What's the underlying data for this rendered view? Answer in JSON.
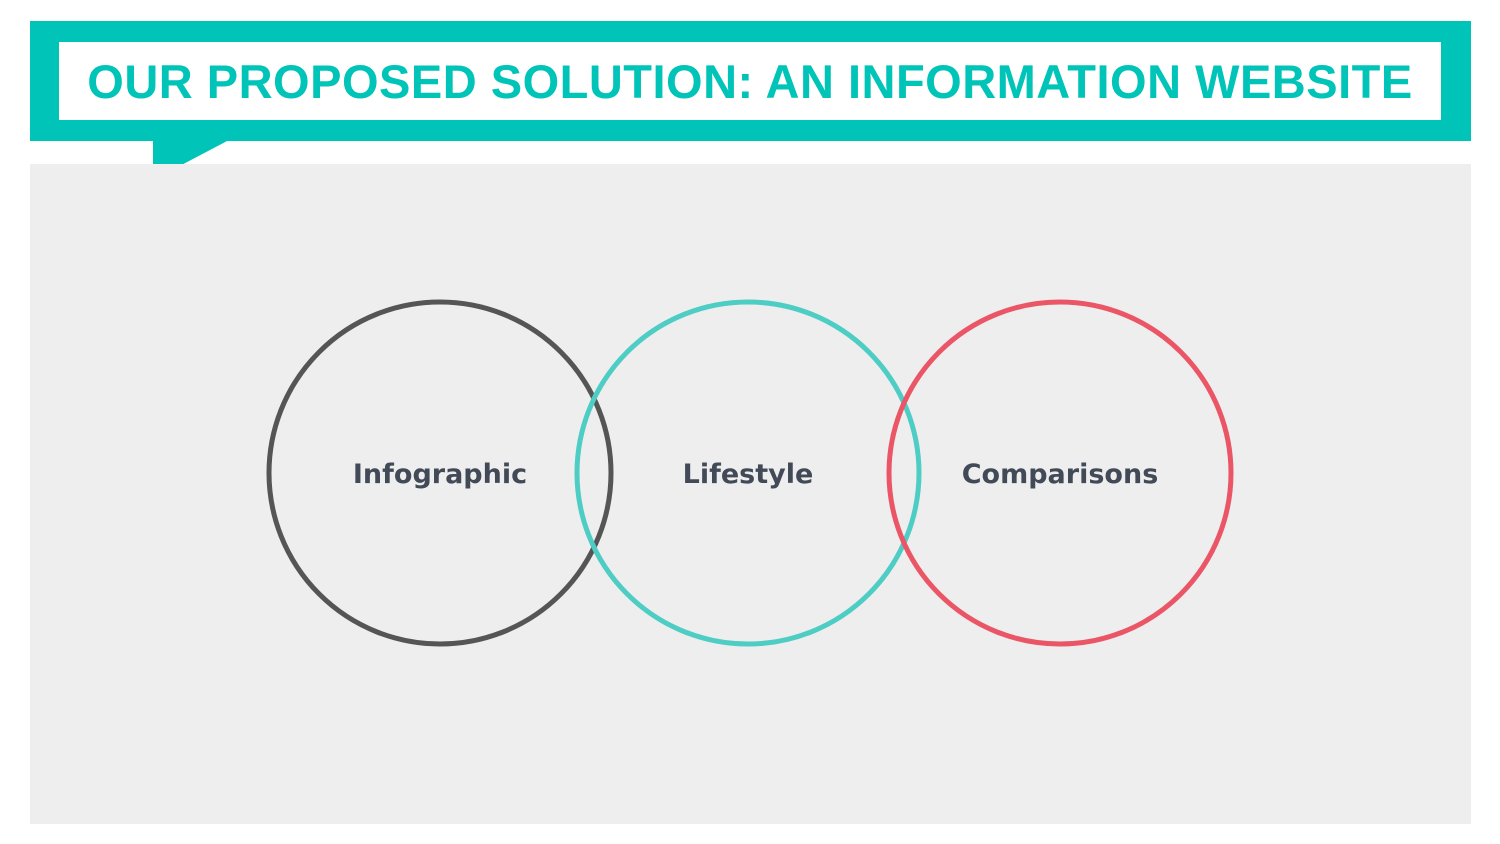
{
  "slide": {
    "title": "OUR PROPOSED SOLUTION: AN INFORMATION WEBSITE"
  },
  "diagram": {
    "circles": [
      {
        "label": "Infographic",
        "color": "#555555"
      },
      {
        "label": "Lifestyle",
        "color": "#4ecdc4"
      },
      {
        "label": "Comparisons",
        "color": "#eb5667"
      }
    ]
  },
  "colors": {
    "accent": "#00c4b8",
    "panel_background": "#eeeeee",
    "label_text": "#424a58"
  }
}
